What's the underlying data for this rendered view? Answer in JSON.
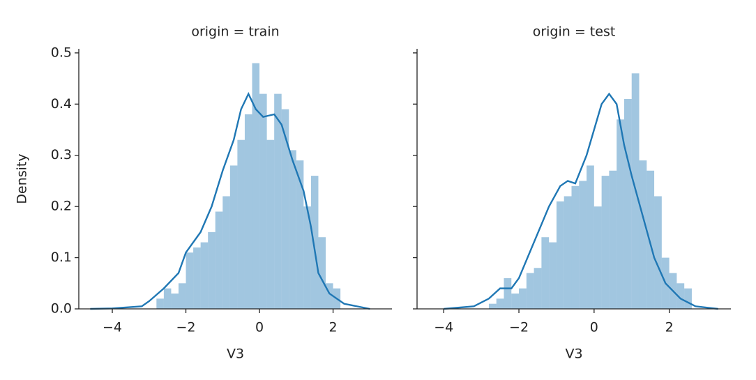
{
  "chart_data": [
    {
      "type": "histogram",
      "title": "origin = train",
      "xlabel": "V3",
      "ylabel": "Density",
      "color": "#1f77b4",
      "bins": [
        -2.8,
        -2.6,
        -2.4,
        -2.2,
        -2.0,
        -1.8,
        -1.6,
        -1.4,
        -1.2,
        -1.0,
        -0.8,
        -0.6,
        -0.4,
        -0.2,
        0.0,
        0.2,
        0.4,
        0.6,
        0.8,
        1.0,
        1.2,
        1.4,
        1.6,
        1.8,
        2.0,
        2.2
      ],
      "values": [
        0.02,
        0.04,
        0.03,
        0.05,
        0.11,
        0.12,
        0.13,
        0.15,
        0.19,
        0.22,
        0.28,
        0.33,
        0.38,
        0.48,
        0.42,
        0.33,
        0.42,
        0.39,
        0.31,
        0.29,
        0.2,
        0.26,
        0.14,
        0.05,
        0.04
      ],
      "kde": {
        "x": [
          -4.6,
          -4.0,
          -3.2,
          -3.0,
          -2.6,
          -2.2,
          -2.0,
          -1.6,
          -1.3,
          -1.0,
          -0.7,
          -0.5,
          -0.3,
          -0.1,
          0.1,
          0.4,
          0.6,
          0.9,
          1.2,
          1.4,
          1.6,
          1.9,
          2.3,
          3.0
        ],
        "y": [
          0,
          0.001,
          0.005,
          0.015,
          0.04,
          0.07,
          0.11,
          0.15,
          0.2,
          0.27,
          0.33,
          0.39,
          0.42,
          0.39,
          0.375,
          0.38,
          0.36,
          0.29,
          0.23,
          0.16,
          0.07,
          0.03,
          0.01,
          0
        ]
      },
      "xlim": [
        -4.91,
        3.6
      ],
      "ylim": [
        0,
        0.508
      ],
      "xticks": [
        {
          "value": -4,
          "label": "−4"
        },
        {
          "value": -2,
          "label": "−2"
        },
        0,
        2
      ],
      "yticks": [
        {
          "value": 0,
          "label": "0.0"
        },
        0.1,
        0.2,
        0.3,
        0.4,
        0.5
      ]
    },
    {
      "type": "histogram",
      "title": "origin = test",
      "xlabel": "V3",
      "color": "#1f77b4",
      "bins": [
        -2.8,
        -2.6,
        -2.4,
        -2.2,
        -2.0,
        -1.8,
        -1.6,
        -1.4,
        -1.2,
        -1.0,
        -0.8,
        -0.6,
        -0.4,
        -0.2,
        0.0,
        0.2,
        0.4,
        0.6,
        0.8,
        1.0,
        1.2,
        1.4,
        1.6,
        1.8,
        2.0,
        2.2,
        2.4,
        2.6
      ],
      "values": [
        0.01,
        0.02,
        0.06,
        0.03,
        0.04,
        0.07,
        0.08,
        0.14,
        0.13,
        0.21,
        0.22,
        0.24,
        0.25,
        0.28,
        0.2,
        0.26,
        0.27,
        0.37,
        0.41,
        0.46,
        0.29,
        0.27,
        0.22,
        0.1,
        0.07,
        0.05,
        0.04
      ],
      "kde": {
        "x": [
          -4.0,
          -3.2,
          -2.8,
          -2.5,
          -2.2,
          -2.0,
          -1.6,
          -1.2,
          -0.9,
          -0.7,
          -0.5,
          -0.2,
          0.0,
          0.2,
          0.4,
          0.6,
          0.8,
          1.0,
          1.3,
          1.6,
          1.9,
          2.3,
          2.7,
          3.3
        ],
        "y": [
          0,
          0.005,
          0.02,
          0.04,
          0.04,
          0.06,
          0.13,
          0.2,
          0.24,
          0.25,
          0.245,
          0.3,
          0.35,
          0.4,
          0.42,
          0.4,
          0.32,
          0.26,
          0.18,
          0.1,
          0.05,
          0.02,
          0.005,
          0
        ]
      },
      "xlim": [
        -4.71,
        3.64
      ],
      "ylim": [
        0,
        0.508
      ],
      "xticks": [
        {
          "value": -4,
          "label": "−4"
        },
        {
          "value": -2,
          "label": "−2"
        },
        0,
        2
      ],
      "yticks": [
        {
          "value": 0,
          "label": "0.0"
        },
        0.1,
        0.2,
        0.3,
        0.4,
        0.5
      ]
    }
  ]
}
